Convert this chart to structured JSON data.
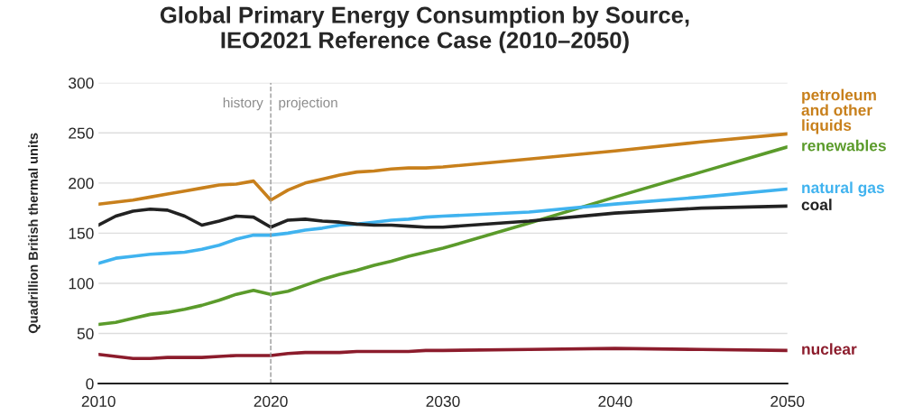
{
  "chart_data": {
    "type": "line",
    "title": "Global Primary Energy Consumption by Source,\nIEO2021 Reference Case (2010–2050)",
    "ylabel": "Quadrillion British thermal units",
    "x": [
      2010,
      2011,
      2012,
      2013,
      2014,
      2015,
      2016,
      2017,
      2018,
      2019,
      2020,
      2021,
      2022,
      2023,
      2024,
      2025,
      2026,
      2027,
      2028,
      2029,
      2030,
      2035,
      2040,
      2045,
      2050
    ],
    "series": [
      {
        "name": "petroleum\nand other\nliquids",
        "color": "#c8801c",
        "values": [
          179,
          181,
          183,
          186,
          189,
          192,
          195,
          198,
          199,
          202,
          183,
          193,
          200,
          204,
          208,
          211,
          212,
          214,
          215,
          215,
          216,
          224,
          232,
          241,
          249
        ]
      },
      {
        "name": "renewables",
        "color": "#5b9b2b",
        "values": [
          59,
          61,
          65,
          69,
          71,
          74,
          78,
          83,
          89,
          93,
          89,
          92,
          98,
          104,
          109,
          113,
          118,
          122,
          127,
          131,
          135,
          160,
          186,
          211,
          236
        ]
      },
      {
        "name": "natural gas",
        "color": "#40b3ef",
        "values": [
          120,
          125,
          127,
          129,
          130,
          131,
          134,
          138,
          144,
          148,
          148,
          150,
          153,
          155,
          158,
          159,
          161,
          163,
          164,
          166,
          167,
          171,
          179,
          186,
          194
        ]
      },
      {
        "name": "coal",
        "color": "#222222",
        "values": [
          158,
          167,
          172,
          174,
          173,
          167,
          158,
          162,
          167,
          166,
          156,
          163,
          164,
          162,
          161,
          159,
          158,
          158,
          157,
          156,
          156,
          162,
          170,
          175,
          177
        ]
      },
      {
        "name": "nuclear",
        "color": "#8c1c2c",
        "values": [
          29,
          27,
          25,
          25,
          26,
          26,
          26,
          27,
          28,
          28,
          28,
          30,
          31,
          31,
          31,
          32,
          32,
          32,
          32,
          33,
          33,
          34,
          35,
          34,
          33
        ]
      }
    ],
    "xlim": [
      2010,
      2050
    ],
    "xticks": [
      2010,
      2020,
      2030,
      2040,
      2050
    ],
    "ylim": [
      0,
      300
    ],
    "yticks": [
      0,
      50,
      100,
      150,
      200,
      250,
      300
    ],
    "grid": "y",
    "legend": false,
    "marker": "none",
    "line_style": "solid",
    "ref_lines": [
      {
        "axis": "x",
        "value": 2020,
        "color": "#999999",
        "line_style": "dashed"
      }
    ],
    "annotations": [
      "history",
      "projection"
    ]
  }
}
